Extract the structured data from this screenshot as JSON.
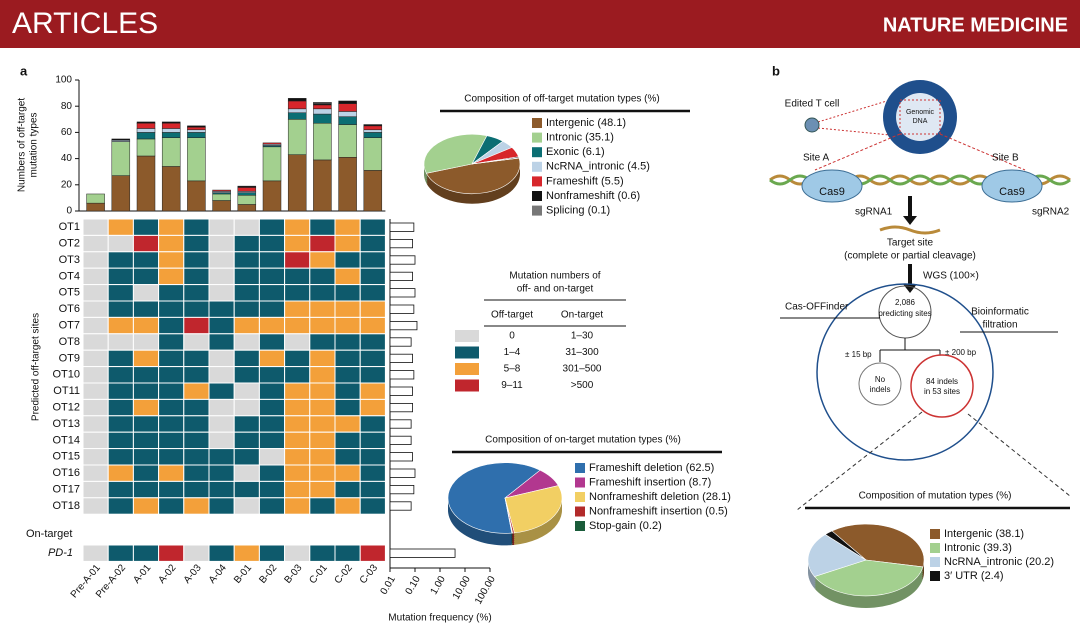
{
  "header": {
    "left": "ARTICLES",
    "right": "NATURE MEDICINE"
  },
  "panel_labels": [
    "a",
    "b"
  ],
  "chart_data": [
    {
      "type": "stacked_bar",
      "ylabel": [
        "Numbers of off-target",
        "mutation types"
      ],
      "categories": [
        "Pre-A-01",
        "Pre-A-02",
        "A-01",
        "A-02",
        "A-03",
        "A-04",
        "B-01",
        "B-02",
        "B-03",
        "C-01",
        "C-02",
        "C-03"
      ],
      "series": [
        {
          "color": "#8c5a2b",
          "values": [
            6,
            27,
            42,
            34,
            23,
            8,
            5,
            23,
            43,
            39,
            41,
            31
          ]
        },
        {
          "color": "#a3d08f",
          "values": [
            7,
            26,
            13,
            22,
            33,
            5,
            7,
            26,
            27,
            28,
            25,
            25
          ]
        },
        {
          "color": "#0b6e73",
          "values": [
            0,
            0,
            5,
            4,
            4,
            1,
            2,
            1,
            5,
            7,
            6,
            4
          ]
        },
        {
          "color": "#bcd2e6",
          "values": [
            0,
            1,
            3,
            3,
            2,
            1,
            1,
            1,
            3,
            4,
            4,
            2
          ]
        },
        {
          "color": "#d7262b",
          "values": [
            0,
            0,
            4,
            4,
            2,
            1,
            3,
            1,
            6,
            3,
            6,
            3
          ]
        },
        {
          "color": "#111111",
          "values": [
            0,
            1,
            1,
            1,
            1,
            0,
            1,
            0,
            2,
            1,
            2,
            1
          ]
        },
        {
          "color": "#777777",
          "values": [
            0,
            0,
            0,
            0,
            0,
            0,
            0,
            0,
            0,
            1,
            0,
            0
          ]
        }
      ],
      "ylim": [
        0,
        100
      ],
      "yticks": [
        0,
        20,
        40,
        60,
        80,
        100
      ]
    },
    {
      "type": "heatmap",
      "ylabel": "Predicted off-target sites",
      "rows": [
        "OT1",
        "OT2",
        "OT3",
        "OT4",
        "OT5",
        "OT6",
        "OT7",
        "OT8",
        "OT9",
        "OT10",
        "OT11",
        "OT12",
        "OT13",
        "OT14",
        "OT15",
        "OT16",
        "OT17",
        "OT18"
      ],
      "on_target_title": "On-target",
      "on_target_rows": [
        "PD-1"
      ],
      "levels": [
        [
          0,
          2,
          1,
          2,
          1,
          0,
          0,
          1,
          2,
          1,
          2,
          1
        ],
        [
          0,
          0,
          3,
          2,
          1,
          0,
          1,
          1,
          2,
          3,
          2,
          1
        ],
        [
          0,
          1,
          1,
          2,
          1,
          0,
          1,
          1,
          3,
          2,
          1,
          1
        ],
        [
          0,
          1,
          1,
          2,
          1,
          0,
          1,
          1,
          1,
          1,
          2,
          1
        ],
        [
          0,
          1,
          0,
          1,
          1,
          0,
          1,
          1,
          1,
          1,
          1,
          1
        ],
        [
          0,
          1,
          1,
          1,
          1,
          1,
          1,
          1,
          2,
          2,
          2,
          2
        ],
        [
          0,
          2,
          2,
          1,
          3,
          1,
          2,
          2,
          2,
          2,
          2,
          2
        ],
        [
          0,
          0,
          0,
          1,
          0,
          1,
          0,
          1,
          0,
          1,
          1,
          1
        ],
        [
          0,
          1,
          2,
          1,
          1,
          0,
          1,
          2,
          1,
          2,
          1,
          1
        ],
        [
          0,
          1,
          1,
          1,
          1,
          0,
          1,
          1,
          1,
          2,
          1,
          1
        ],
        [
          0,
          1,
          1,
          1,
          2,
          1,
          0,
          1,
          2,
          2,
          1,
          2
        ],
        [
          0,
          1,
          2,
          1,
          1,
          0,
          0,
          1,
          2,
          2,
          1,
          2
        ],
        [
          0,
          1,
          1,
          1,
          1,
          0,
          1,
          1,
          2,
          2,
          2,
          1
        ],
        [
          0,
          1,
          1,
          1,
          1,
          0,
          1,
          1,
          2,
          2,
          1,
          1
        ],
        [
          0,
          1,
          1,
          1,
          1,
          1,
          1,
          0,
          2,
          2,
          1,
          1
        ],
        [
          0,
          2,
          1,
          2,
          1,
          1,
          0,
          1,
          2,
          2,
          2,
          1
        ],
        [
          0,
          1,
          1,
          1,
          1,
          1,
          1,
          1,
          2,
          2,
          1,
          1
        ],
        [
          0,
          1,
          2,
          1,
          2,
          1,
          0,
          1,
          2,
          1,
          2,
          1
        ]
      ],
      "on_target_levels": [
        [
          0,
          1,
          1,
          3,
          0,
          1,
          2,
          1,
          0,
          1,
          1,
          3
        ]
      ],
      "legend": {
        "title": [
          "Mutation numbers of",
          "off- and on-target"
        ],
        "headers": [
          "Off-target",
          "On-target"
        ],
        "colors": [
          "#d9d9d9",
          "#0e5a6c",
          "#f3a03a",
          "#c0262d"
        ],
        "off": [
          "0",
          "1–4",
          "5–8",
          "9–11"
        ],
        "on": [
          "1–30",
          "31–300",
          "301–500",
          ">500"
        ]
      }
    },
    {
      "type": "bar_log",
      "xlabel": "Mutation frequency (%)",
      "log": true,
      "values": [
        0.09,
        0.08,
        0.1,
        0.08,
        0.1,
        0.09,
        0.12,
        0.07,
        0.08,
        0.09,
        0.08,
        0.08,
        0.07,
        0.07,
        0.08,
        0.1,
        0.09,
        0.07
      ],
      "on_target_values": [
        4
      ],
      "xlim": [
        0.01,
        100
      ],
      "xticks": [
        0.01,
        {
          "value": 0.1,
          "label": "0.10"
        },
        {
          "value": 1,
          "label": "1.00"
        },
        {
          "value": 10,
          "label": "10.00"
        },
        {
          "value": 100,
          "label": "100.00"
        }
      ]
    },
    {
      "type": "pie",
      "title": "Composition of off-target mutation types (%)",
      "categories": [
        "Intergenic (48.1)",
        "Intronic (35.1)",
        "Exonic (6.1)",
        "NcRNA_intronic (4.5)",
        "Frameshift (5.5)",
        "Nonframeshift (0.6)",
        "Splicing (0.1)"
      ],
      "values": [
        48.1,
        35.1,
        6.1,
        4.5,
        5.5,
        0.6,
        0.1
      ],
      "colors": [
        "#8c5a2b",
        "#a3d08f",
        "#0b6e73",
        "#bcd2e6",
        "#d7262b",
        "#111111",
        "#777777"
      ]
    },
    {
      "type": "pie",
      "title": "Composition of on-target mutation types (%)",
      "categories": [
        "Frameshift deletion (62.5)",
        "Frameshift insertion (8.7)",
        "Nonframeshift deletion (28.1)",
        "Nonframeshift insertion (0.5)",
        "Stop-gain (0.2)"
      ],
      "values": [
        62.5,
        8.7,
        28.1,
        0.5,
        0.2
      ],
      "colors": [
        "#2f6fad",
        "#b2378f",
        "#f2cf63",
        "#b22a2a",
        "#1a5c3a"
      ]
    },
    {
      "type": "pie",
      "title": "Composition of mutation types (%)",
      "categories": [
        "Intergenic (38.1)",
        "Intronic (39.3)",
        "NcRNA_intronic (20.2)",
        "3′ UTR (2.4)"
      ],
      "values": [
        38.1,
        39.3,
        20.2,
        2.4
      ],
      "colors": [
        "#8c5a2b",
        "#a3d08f",
        "#bcd2e6",
        "#111111"
      ]
    }
  ],
  "diagram": {
    "cell": "Edited T cell",
    "dna": [
      "Genomic",
      "DNA"
    ],
    "site_a": "Site A",
    "site_b": "Site B",
    "cas9": [
      "Cas9",
      "Cas9"
    ],
    "sgrna": [
      "sgRNA1",
      "sgRNA2"
    ],
    "target": [
      "Target site",
      "(complete or partial cleavage)"
    ],
    "wgs": "WGS (100×)",
    "tool": "Cas-OFFinder",
    "predicted": [
      "2,086",
      "predicting sites"
    ],
    "filter": [
      "Bioinformatic",
      "filtration"
    ],
    "windows": [
      "± 15 bp",
      "± 200 bp"
    ],
    "no_indels": [
      "No",
      "indels"
    ],
    "indels": [
      "84 indels",
      "in 53 sites"
    ]
  }
}
